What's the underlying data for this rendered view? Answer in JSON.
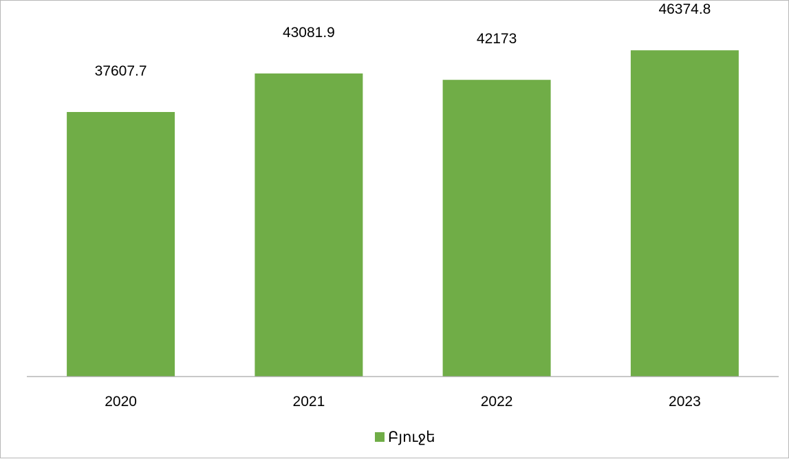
{
  "chart_data": {
    "type": "bar",
    "categories": [
      "2020",
      "2021",
      "2022",
      "2023"
    ],
    "series": [
      {
        "name": "Բյուջե",
        "values": [
          37607.7,
          43081.9,
          42173,
          46374.8
        ],
        "color": "#70ad47"
      }
    ],
    "data_labels": [
      "37607.7",
      "43081.9",
      "42173",
      "46374.8"
    ],
    "legend_position": "bottom",
    "grid": false,
    "ylim": [
      0,
      50000
    ]
  }
}
